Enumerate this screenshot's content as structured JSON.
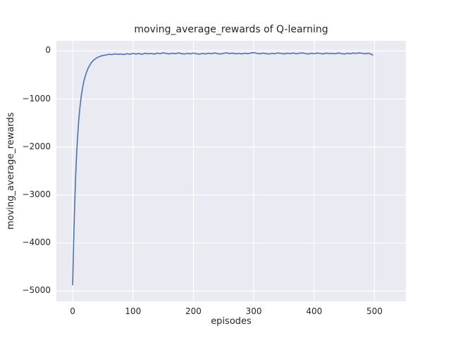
{
  "chart_data": {
    "type": "line",
    "title": "moving_average_rewards of Q-learning",
    "xlabel": "episodes",
    "ylabel": "moving_average_rewards",
    "xlim": [
      -27,
      552
    ],
    "ylim": [
      -5215,
      210
    ],
    "xticks": [
      0,
      100,
      200,
      300,
      400,
      500
    ],
    "xtick_labels": [
      "0",
      "100",
      "200",
      "300",
      "400",
      "500"
    ],
    "yticks": [
      0,
      -1000,
      -2000,
      -3000,
      -4000,
      -5000
    ],
    "ytick_labels": [
      "0",
      "−1000",
      "−2000",
      "−3000",
      "−4000",
      "−5000"
    ],
    "grid": true,
    "legend": "none",
    "style": {
      "plot_bg": "#eaeaf2",
      "grid_color": "#ffffff",
      "line_color": "#4c72b0",
      "text_color": "#262626",
      "line_width": 1.6
    },
    "series": [
      {
        "name": "moving_average_rewards",
        "points": [
          [
            0,
            -4870
          ],
          [
            1,
            -4300
          ],
          [
            2,
            -3800
          ],
          [
            3,
            -3350
          ],
          [
            4,
            -2950
          ],
          [
            5,
            -2600
          ],
          [
            6,
            -2300
          ],
          [
            7,
            -2050
          ],
          [
            8,
            -1830
          ],
          [
            10,
            -1450
          ],
          [
            12,
            -1180
          ],
          [
            14,
            -960
          ],
          [
            16,
            -800
          ],
          [
            18,
            -660
          ],
          [
            20,
            -560
          ],
          [
            23,
            -440
          ],
          [
            26,
            -350
          ],
          [
            30,
            -260
          ],
          [
            34,
            -200
          ],
          [
            38,
            -160
          ],
          [
            42,
            -130
          ],
          [
            46,
            -110
          ],
          [
            50,
            -95
          ],
          [
            55,
            -85
          ],
          [
            60,
            -70
          ],
          [
            65,
            -78
          ],
          [
            70,
            -60
          ],
          [
            75,
            -72
          ],
          [
            80,
            -65
          ],
          [
            85,
            -75
          ],
          [
            90,
            -58
          ],
          [
            95,
            -68
          ],
          [
            100,
            -52
          ],
          [
            105,
            -64
          ],
          [
            110,
            -55
          ],
          [
            115,
            -70
          ],
          [
            120,
            -48
          ],
          [
            125,
            -60
          ],
          [
            130,
            -52
          ],
          [
            135,
            -66
          ],
          [
            140,
            -45
          ],
          [
            145,
            -58
          ],
          [
            150,
            -38
          ],
          [
            155,
            -52
          ],
          [
            160,
            -62
          ],
          [
            165,
            -48
          ],
          [
            170,
            -58
          ],
          [
            175,
            -42
          ],
          [
            180,
            -55
          ],
          [
            185,
            -65
          ],
          [
            190,
            -50
          ],
          [
            195,
            -60
          ],
          [
            200,
            -45
          ],
          [
            205,
            -58
          ],
          [
            210,
            -68
          ],
          [
            215,
            -52
          ],
          [
            220,
            -62
          ],
          [
            225,
            -48
          ],
          [
            230,
            -58
          ],
          [
            235,
            -42
          ],
          [
            240,
            -55
          ],
          [
            245,
            -65
          ],
          [
            250,
            -50
          ],
          [
            255,
            -40
          ],
          [
            260,
            -55
          ],
          [
            265,
            -45
          ],
          [
            270,
            -60
          ],
          [
            275,
            -50
          ],
          [
            280,
            -62
          ],
          [
            285,
            -48
          ],
          [
            290,
            -58
          ],
          [
            295,
            -44
          ],
          [
            300,
            -35
          ],
          [
            305,
            -50
          ],
          [
            310,
            -60
          ],
          [
            315,
            -45
          ],
          [
            320,
            -55
          ],
          [
            325,
            -65
          ],
          [
            330,
            -50
          ],
          [
            335,
            -58
          ],
          [
            340,
            -42
          ],
          [
            345,
            -52
          ],
          [
            350,
            -62
          ],
          [
            355,
            -48
          ],
          [
            360,
            -56
          ],
          [
            365,
            -44
          ],
          [
            370,
            -58
          ],
          [
            375,
            -50
          ],
          [
            380,
            -40
          ],
          [
            385,
            -54
          ],
          [
            390,
            -64
          ],
          [
            395,
            -48
          ],
          [
            400,
            -58
          ],
          [
            405,
            -44
          ],
          [
            410,
            -52
          ],
          [
            415,
            -62
          ],
          [
            420,
            -46
          ],
          [
            425,
            -56
          ],
          [
            430,
            -50
          ],
          [
            435,
            -60
          ],
          [
            440,
            -42
          ],
          [
            445,
            -54
          ],
          [
            450,
            -64
          ],
          [
            455,
            -48
          ],
          [
            460,
            -58
          ],
          [
            465,
            -44
          ],
          [
            470,
            -52
          ],
          [
            475,
            -40
          ],
          [
            480,
            -50
          ],
          [
            485,
            -60
          ],
          [
            490,
            -46
          ],
          [
            495,
            -70
          ],
          [
            497,
            -85
          ]
        ]
      }
    ]
  }
}
